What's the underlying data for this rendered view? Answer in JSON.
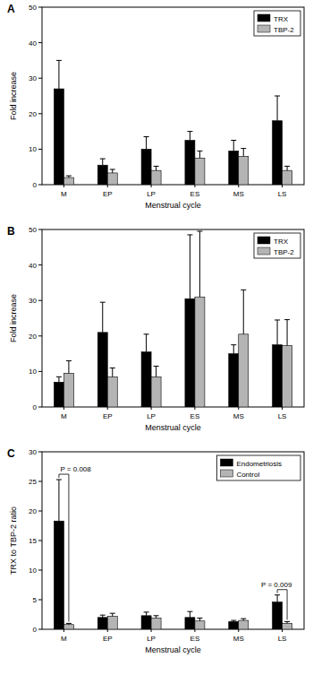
{
  "chart_data": [
    {
      "type": "bar",
      "title": "A",
      "x_label": "Menstrual cycle",
      "y_label": "Fold increase",
      "categories": [
        "M",
        "EP",
        "LP",
        "ES",
        "MS",
        "LS"
      ],
      "series": [
        {
          "name": "TRX",
          "color": "#000000",
          "values": [
            27,
            5.5,
            10,
            12.5,
            9.5,
            18
          ],
          "errors": [
            8,
            1.8,
            3.5,
            2.5,
            3,
            7
          ]
        },
        {
          "name": "TBP-2",
          "color": "#b4b4b4",
          "values": [
            2,
            3.3,
            4,
            7.5,
            8,
            4
          ],
          "errors": [
            0.5,
            1,
            1.2,
            2,
            2.2,
            1.2
          ]
        }
      ],
      "ylim": [
        0,
        50
      ],
      "yticks": [
        0,
        10,
        20,
        30,
        40,
        50
      ],
      "legend": "upper right"
    },
    {
      "type": "bar",
      "title": "B",
      "x_label": "Menstrual cycle",
      "y_label": "Fold increase",
      "categories": [
        "M",
        "EP",
        "LP",
        "ES",
        "MS",
        "LS"
      ],
      "series": [
        {
          "name": "TRX",
          "color": "#000000",
          "values": [
            7,
            21,
            15.5,
            30.5,
            15,
            17.5
          ],
          "errors": [
            1.5,
            8.5,
            5,
            18,
            2.5,
            7
          ]
        },
        {
          "name": "TBP-2",
          "color": "#b4b4b4",
          "values": [
            9.5,
            8.5,
            8.5,
            31,
            20.5,
            17.3
          ],
          "errors": [
            3.5,
            2.5,
            3,
            18.5,
            12.5,
            7.3
          ]
        }
      ],
      "ylim": [
        0,
        50
      ],
      "yticks": [
        0,
        10,
        20,
        30,
        40,
        50
      ],
      "legend": "upper right"
    },
    {
      "type": "bar",
      "title": "C",
      "x_label": "Menstrual cycle",
      "y_label": "TRX to TBP-2 ratio",
      "categories": [
        "M",
        "EP",
        "LP",
        "ES",
        "MS",
        "LS"
      ],
      "series": [
        {
          "name": "Endometriosis",
          "color": "#000000",
          "values": [
            18.3,
            2,
            2.3,
            2,
            1.3,
            4.6
          ],
          "errors": [
            7,
            0.4,
            0.6,
            1,
            0.2,
            1.2
          ]
        },
        {
          "name": "Control",
          "color": "#b4b4b4",
          "values": [
            0.8,
            2.2,
            1.9,
            1.4,
            1.5,
            1
          ],
          "errors": [
            0.2,
            0.5,
            0.4,
            0.5,
            0.3,
            0.3
          ]
        }
      ],
      "ylim": [
        0,
        30
      ],
      "yticks": [
        0,
        5,
        10,
        15,
        20,
        25,
        30
      ],
      "legend": "upper right",
      "annotations": [
        {
          "text": "P = 0.008",
          "category": "M"
        },
        {
          "text": "P = 0.009",
          "category": "LS"
        }
      ]
    }
  ]
}
